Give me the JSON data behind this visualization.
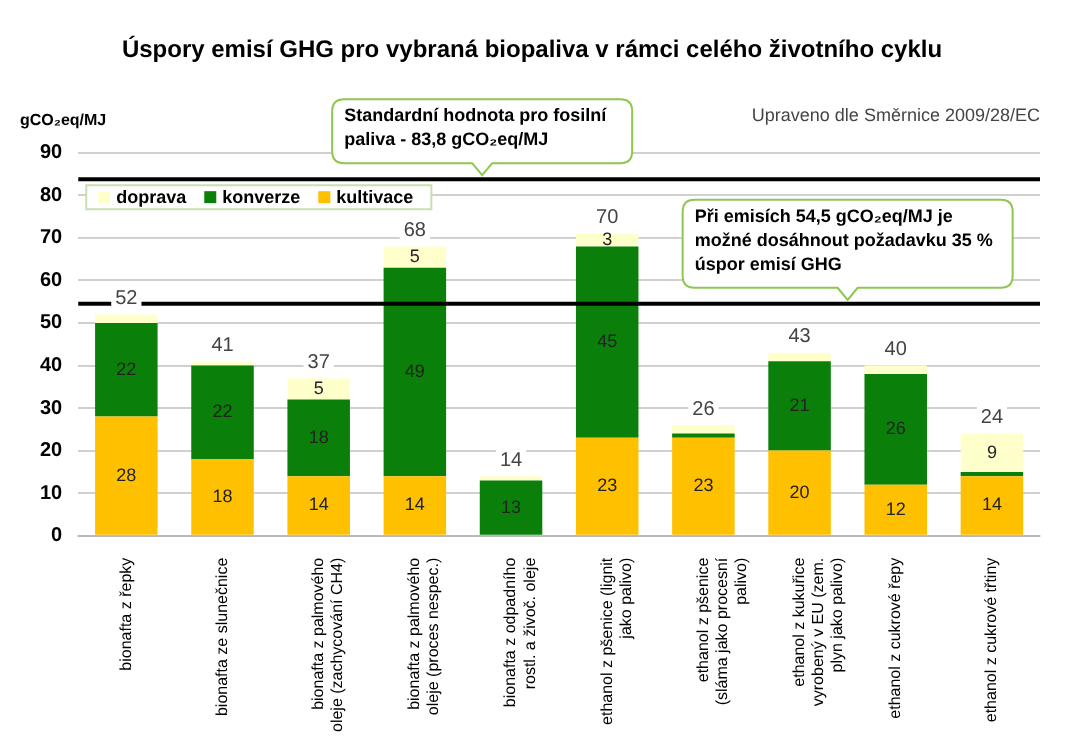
{
  "chart_data": {
    "type": "bar",
    "title": "Úspory emisí GHG pro vybraná biopaliva v rámci celého životního cyklu",
    "ylabel": "gCO₂eq/MJ",
    "annotations": [
      "Upraveno dle Směrnice 2009/28/EC"
    ],
    "categories": [
      "bionafta z řepky",
      "bionafta ze slunečnice",
      "bionafta z palmového oleje (zachycování CH4)",
      "bionafta z palmového oleje (proces nespec.)",
      "bionafta z odpadního rostl. a živoč. oleje",
      "ethanol z pšenice (lignit jako palivo)",
      "ethanol z pšenice (sláma jako procesní palivo)",
      "ethanol z kukuřice vyrobený v EU (zem. plyn jako palivo)",
      "ethanol z cukrové řepy",
      "ethanol z cukrové třtiny"
    ],
    "series": [
      {
        "name": "kultivace",
        "color": "#ffc000",
        "values": [
          28,
          18,
          14,
          14,
          0,
          23,
          23,
          20,
          12,
          14
        ],
        "value_labels": [
          "28",
          "18",
          "14",
          "14",
          null,
          "23",
          "23",
          "20",
          "12",
          "14"
        ]
      },
      {
        "name": "konverze",
        "color": "#0a800a",
        "values": [
          22,
          22,
          18,
          49,
          13,
          45,
          1,
          21,
          26,
          1
        ],
        "value_labels": [
          "22",
          "22",
          "18",
          "49",
          "13",
          "45",
          null,
          "21",
          "26",
          null
        ]
      },
      {
        "name": "doprava",
        "color": "#ffffcc",
        "values": [
          2,
          1,
          5,
          5,
          1,
          3,
          2,
          2,
          2,
          9
        ],
        "value_labels": [
          null,
          null,
          "5",
          "5",
          null,
          "3",
          null,
          null,
          null,
          "9"
        ]
      }
    ],
    "totals": [
      "52",
      "41",
      "37",
      "68",
      "14",
      "70",
      "26",
      "43",
      "40",
      "24"
    ],
    "stacked": true,
    "ylim": [
      0,
      90
    ],
    "yticks": [
      0,
      10,
      20,
      30,
      40,
      50,
      60,
      70,
      80,
      90
    ],
    "grid": "y",
    "legend": "top left",
    "ref_lines": [
      {
        "axis": "y",
        "value": 83.8,
        "label": "Standardní hodnota pro fosilní paliva - 83,8 gCO₂eq/MJ",
        "color": "#000000"
      },
      {
        "axis": "y",
        "value": 54.5,
        "label": "Při emisích 54,5 gCO₂eq/MJ je možné dosáhnout požadavku 35 % úspor emisí GHG",
        "color": "#000000"
      }
    ]
  }
}
